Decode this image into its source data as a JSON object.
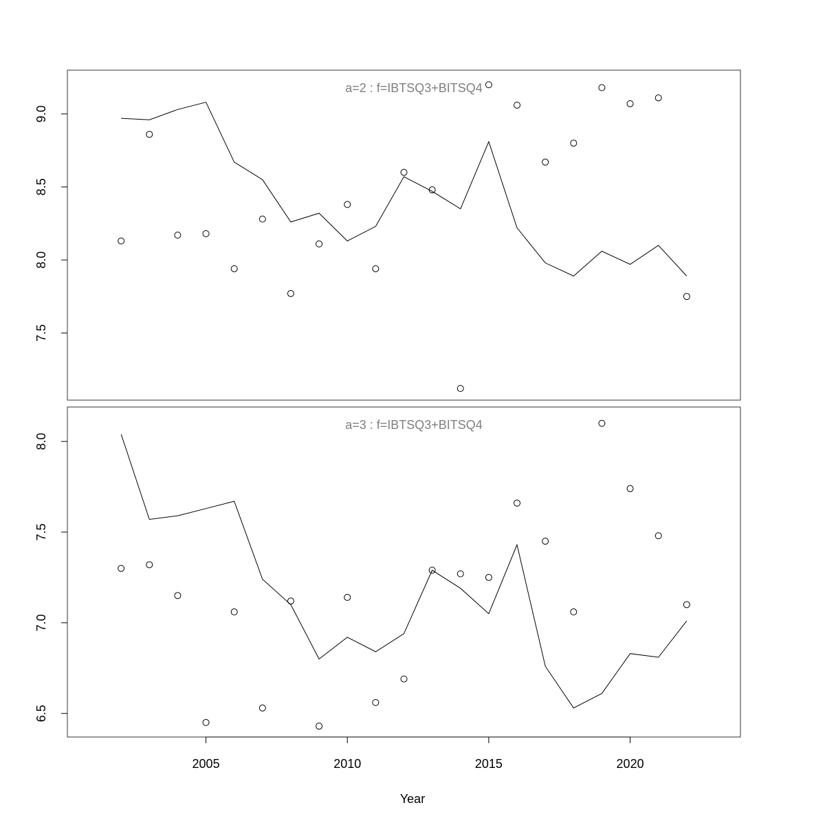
{
  "chart_data": {
    "type": "line",
    "xlabel": "Year",
    "xlim": [
      2000.1,
      2023.9
    ],
    "xticks": [
      2005,
      2010,
      2015,
      2020
    ],
    "panels": [
      {
        "title": "a=2  :  f=IBTSQ3+BITSQ4",
        "ylim": [
          7.04,
          9.3
        ],
        "yticks": [
          "7.5",
          "8.0",
          "8.5",
          "9.0"
        ],
        "x": [
          2002,
          2003,
          2004,
          2005,
          2006,
          2007,
          2008,
          2009,
          2010,
          2011,
          2012,
          2013,
          2014,
          2015,
          2016,
          2017,
          2018,
          2019,
          2020,
          2021,
          2022
        ],
        "series": [
          {
            "kind": "line",
            "values": [
              8.97,
              8.96,
              9.03,
              9.08,
              8.67,
              8.55,
              8.26,
              8.32,
              8.13,
              8.23,
              8.57,
              8.47,
              8.35,
              8.81,
              8.22,
              7.98,
              7.89,
              8.06,
              7.97,
              8.1,
              7.89
            ]
          },
          {
            "kind": "points",
            "values": [
              8.13,
              8.86,
              8.17,
              8.18,
              7.94,
              8.28,
              7.77,
              8.11,
              8.38,
              7.94,
              8.6,
              8.48,
              7.12,
              9.2,
              9.06,
              8.67,
              8.8,
              9.18,
              9.07,
              9.11,
              7.75
            ]
          }
        ]
      },
      {
        "title": "a=3  :  f=IBTSQ3+BITSQ4",
        "ylim": [
          6.37,
          8.19
        ],
        "yticks": [
          "6.5",
          "7.0",
          "7.5",
          "8.0"
        ],
        "x": [
          2002,
          2003,
          2004,
          2005,
          2006,
          2007,
          2008,
          2009,
          2010,
          2011,
          2012,
          2013,
          2014,
          2015,
          2016,
          2017,
          2018,
          2019,
          2020,
          2021,
          2022
        ],
        "series": [
          {
            "kind": "line",
            "values": [
              8.04,
              7.57,
              7.59,
              7.63,
              7.67,
              7.24,
              7.1,
              6.8,
              6.92,
              6.84,
              6.94,
              7.29,
              7.19,
              7.05,
              7.43,
              6.76,
              6.53,
              6.61,
              6.83,
              6.81,
              7.01
            ]
          },
          {
            "kind": "points",
            "values": [
              7.3,
              7.32,
              7.15,
              6.45,
              7.06,
              6.53,
              7.12,
              6.43,
              7.14,
              6.56,
              6.69,
              7.29,
              7.27,
              7.25,
              7.66,
              7.45,
              7.06,
              8.1,
              7.74,
              7.48,
              7.1
            ]
          }
        ]
      }
    ]
  }
}
